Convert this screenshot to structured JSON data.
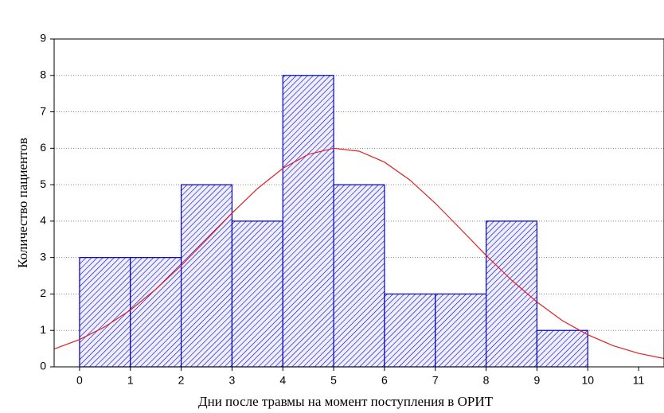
{
  "chart_data": {
    "type": "histogram",
    "xlabel": "Дни после травмы на момент поступления в ОРИТ",
    "ylabel": "Количество пациентов",
    "bins": [
      0,
      1,
      2,
      3,
      4,
      5,
      6,
      7,
      8,
      9,
      10
    ],
    "counts": [
      3,
      3,
      5,
      4,
      8,
      5,
      2,
      2,
      4,
      1
    ],
    "color": "#0000c0",
    "fit": {
      "color": "#e02020",
      "x": [
        -0.5,
        0,
        0.5,
        1,
        1.5,
        2,
        2.5,
        3,
        3.5,
        4,
        4.5,
        5,
        5.5,
        6,
        6.5,
        7,
        7.5,
        8,
        8.5,
        9,
        9.5,
        10,
        10.5,
        11,
        11.5
      ],
      "values": [
        0.49,
        0.75,
        1.1,
        1.56,
        2.13,
        2.78,
        3.49,
        4.22,
        4.89,
        5.45,
        5.83,
        6.0,
        5.92,
        5.62,
        5.13,
        4.49,
        3.78,
        3.06,
        2.38,
        1.78,
        1.27,
        0.88,
        0.58,
        0.37,
        0.23
      ]
    },
    "xlim": [
      -0.5,
      11.5
    ],
    "ylim": [
      0,
      9
    ],
    "xticks": [
      0,
      1,
      2,
      3,
      4,
      5,
      6,
      7,
      8,
      9,
      10,
      11
    ],
    "yticks": [
      0,
      1,
      2,
      3,
      4,
      5,
      6,
      7,
      8,
      9
    ],
    "grid": true
  }
}
